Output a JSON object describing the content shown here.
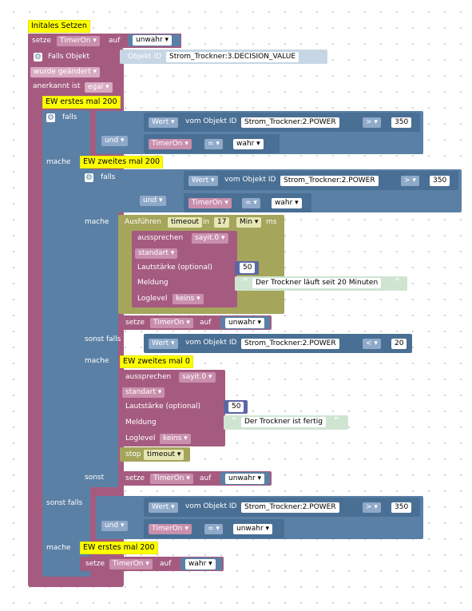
{
  "blocks": {
    "init_comment": "Initales Setzen",
    "setze": "setze",
    "auf": "auf",
    "var_timer": "TimerOn ▾",
    "unwahr": "unwahr ▾",
    "wahr": "wahr ▾",
    "falls_objekt": "Falls Objekt",
    "objekt_id_label": "Objekt ID",
    "objekt_id_value": "Strom_Trockner:3.DECISION_VALUE",
    "wurde_geaendert": "wurde geändert ▾",
    "anerkannt_ist": "anerkannt ist",
    "egal": "egal ▾",
    "ew_erstes_200": "EW erstes mal 200",
    "ew_zweites_200": "EW zweites mal 200",
    "ew_zweites_0": "EW zweites mal 0",
    "falls": "falls",
    "mache": "mache",
    "sonst_falls": "sonst falls",
    "sonst": "sonst",
    "und": "und ▾",
    "wert": "Wert ▾",
    "vom_objekt_id": "vom Objekt ID",
    "power_id": "Strom_Trockner:2.POWER",
    "gt": "> ▾",
    "lt": "< ▾",
    "eq": "= ▾",
    "n350": "350",
    "n20": "20",
    "n50": "50",
    "n17": "17",
    "ausfuehren": "Ausführen",
    "timeout": "timeout",
    "in": "in",
    "min": "Min ▾",
    "ms": "ms",
    "aussprechen": "aussprechen",
    "sayit": "sayit.0 ▾",
    "standart": "standart ▾",
    "lautstaerke": "Lautstärke (optional)",
    "meldung": "Meldung",
    "msg20": "Der Trockner läuft seit 20 Minuten",
    "msg_fertig": "Der Trockner ist fertig",
    "loglevel": "Loglevel",
    "keins": "keins ▾",
    "stop": "stop",
    "timeout_dd": "timeout ▾"
  },
  "colors": {
    "logic": "#5b80a5",
    "var": "#a55b80",
    "timer": "#a5a55b",
    "comment": "#ffff00"
  },
  "icons": [
    "gear-icon",
    "open-quote-icon",
    "close-quote-icon"
  ]
}
